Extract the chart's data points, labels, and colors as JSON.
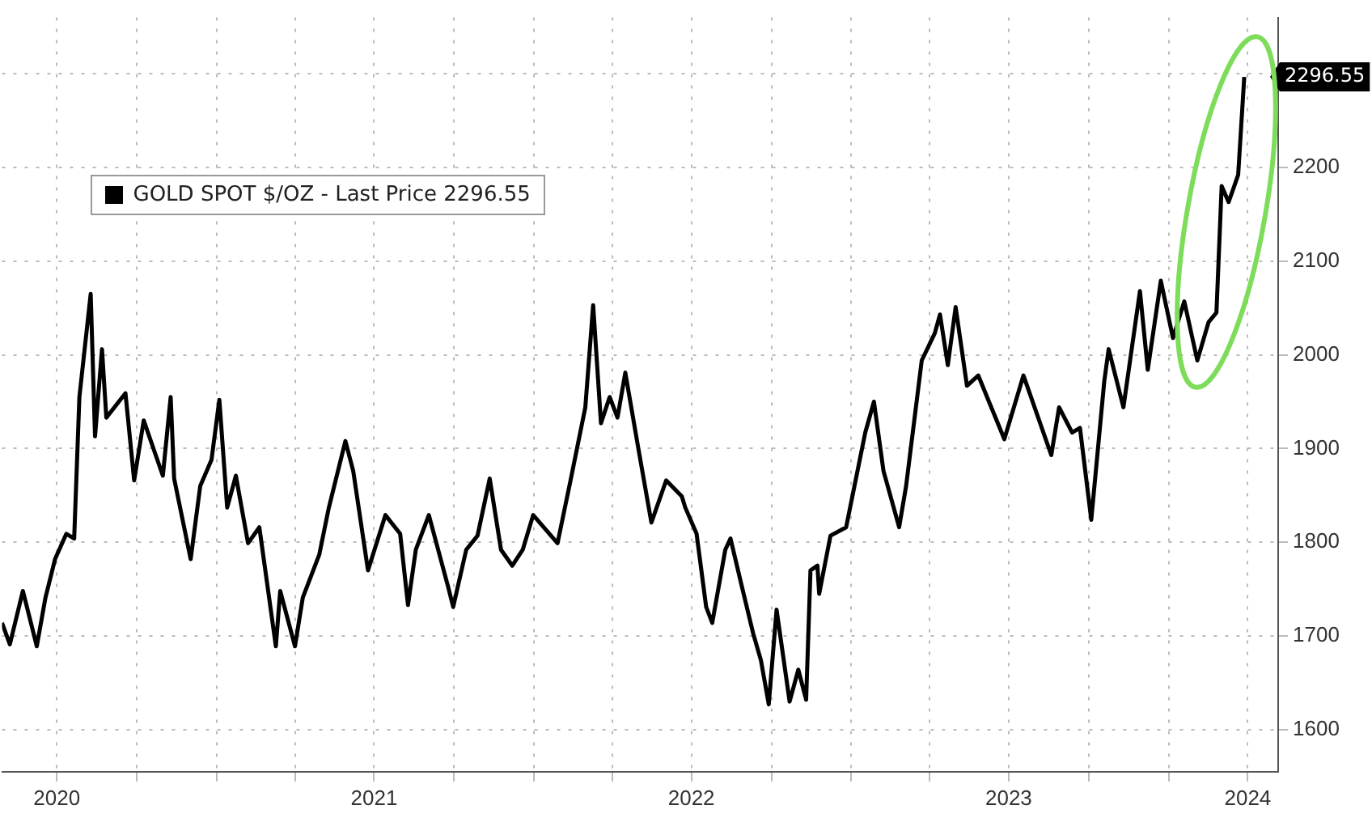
{
  "chart_data": {
    "type": "line",
    "x": [
      "2020-04-29",
      "2020-05-08",
      "2020-05-23",
      "2020-06-08",
      "2020-06-18",
      "2020-06-29",
      "2020-07-12",
      "2020-07-21",
      "2020-07-27",
      "2020-08-09",
      "2020-08-14",
      "2020-08-22",
      "2020-08-27",
      "2020-09-18",
      "2020-09-28",
      "2020-10-09",
      "2020-10-31",
      "2020-11-09",
      "2020-11-13",
      "2020-12-02",
      "2020-12-13",
      "2020-12-26",
      "2021-01-04",
      "2021-01-13",
      "2021-01-23",
      "2021-02-06",
      "2021-02-19",
      "2021-03-10",
      "2021-03-15",
      "2021-04-01",
      "2021-04-10",
      "2021-04-29",
      "2021-05-10",
      "2021-05-29",
      "2021-06-07",
      "2021-06-24",
      "2021-07-14",
      "2021-07-31",
      "2021-08-09",
      "2021-08-18",
      "2021-09-02",
      "2021-09-24",
      "2021-09-30",
      "2021-10-15",
      "2021-10-28",
      "2021-11-11",
      "2021-11-24",
      "2021-12-07",
      "2021-12-19",
      "2021-12-31",
      "2022-01-28",
      "2022-02-12",
      "2022-03-01",
      "2022-03-10",
      "2022-03-19",
      "2022-03-29",
      "2022-04-07",
      "2022-04-16",
      "2022-05-01",
      "2022-05-16",
      "2022-06-02",
      "2022-06-20",
      "2022-06-24",
      "2022-07-07",
      "2022-07-18",
      "2022-07-25",
      "2022-08-09",
      "2022-08-15",
      "2022-08-28",
      "2022-09-10",
      "2022-09-19",
      "2022-09-28",
      "2022-10-07",
      "2022-10-22",
      "2022-11-01",
      "2022-11-10",
      "2022-11-15",
      "2022-11-23",
      "2022-11-25",
      "2022-12-08",
      "2022-12-26",
      "2023-01-17",
      "2023-01-27",
      "2023-02-07",
      "2023-02-25",
      "2023-03-05",
      "2023-03-23",
      "2023-04-07",
      "2023-04-13",
      "2023-04-22",
      "2023-05-01",
      "2023-05-14",
      "2023-05-27",
      "2023-06-11",
      "2023-06-26",
      "2023-07-18",
      "2023-08-19",
      "2023-08-28",
      "2023-09-12",
      "2023-09-21",
      "2023-10-04",
      "2023-10-19",
      "2023-10-24",
      "2023-11-10",
      "2023-11-29",
      "2023-12-08",
      "2023-12-23",
      "2024-01-06",
      "2024-01-19",
      "2024-02-03",
      "2024-02-16",
      "2024-02-25",
      "2024-03-02",
      "2024-03-10",
      "2024-03-21",
      "2024-03-28"
    ],
    "series": [
      {
        "name": "GOLD SPOT $/OZ - Last Price 2296.55",
        "color": "#000000",
        "values": [
          1714,
          1691,
          1748,
          1689,
          1741,
          1782,
          1809,
          1804,
          1955,
          2065,
          1913,
          2006,
          1933,
          1959,
          1866,
          1930,
          1871,
          1955,
          1868,
          1782,
          1860,
          1888,
          1952,
          1837,
          1871,
          1799,
          1816,
          1689,
          1748,
          1689,
          1741,
          1787,
          1837,
          1908,
          1876,
          1770,
          1829,
          1809,
          1733,
          1792,
          1829,
          1753,
          1731,
          1792,
          1807,
          1868,
          1792,
          1775,
          1792,
          1829,
          1799,
          1866,
          1944,
          2053,
          1927,
          1955,
          1933,
          1981,
          1900,
          1821,
          1866,
          1849,
          1837,
          1809,
          1731,
          1714,
          1792,
          1804,
          1753,
          1703,
          1674,
          1627,
          1728,
          1630,
          1664,
          1632,
          1770,
          1775,
          1745,
          1807,
          1816,
          1917,
          1950,
          1876,
          1816,
          1860,
          1994,
          2023,
          2043,
          1989,
          2051,
          1967,
          1978,
          1944,
          1910,
          1978,
          1893,
          1944,
          1917,
          1922,
          1824,
          1972,
          2006,
          1944,
          2068,
          1984,
          2079,
          2018,
          2057,
          1994,
          2035,
          2045,
          2180,
          2163,
          2192,
          2296.55
        ]
      }
    ],
    "xlim": [
      "2020-04-29",
      "2024-05-06"
    ],
    "xticks": [
      {
        "value": "2020-07-01",
        "label": "2020"
      },
      {
        "value": "2020-10-01",
        "label": null
      },
      {
        "value": "2021-01-01",
        "label": null
      },
      {
        "value": "2021-04-01",
        "label": null
      },
      {
        "value": "2021-07-01",
        "label": "2021"
      },
      {
        "value": "2021-10-01",
        "label": null
      },
      {
        "value": "2022-01-01",
        "label": null
      },
      {
        "value": "2022-04-01",
        "label": null
      },
      {
        "value": "2022-07-01",
        "label": "2022"
      },
      {
        "value": "2022-10-01",
        "label": null
      },
      {
        "value": "2023-01-01",
        "label": null
      },
      {
        "value": "2023-04-01",
        "label": null
      },
      {
        "value": "2023-07-01",
        "label": "2023"
      },
      {
        "value": "2023-10-01",
        "label": null
      },
      {
        "value": "2024-01-01",
        "label": null
      },
      {
        "value": "2024-04-01",
        "label": "2024"
      }
    ],
    "ylim": [
      1555,
      2360
    ],
    "yticks": [
      1600,
      1700,
      1800,
      1900,
      2000,
      2100,
      2200,
      {
        "value": 2300,
        "label": null
      }
    ],
    "annotations": [
      {
        "text": "2296.55",
        "x": "2024-03-28",
        "y": 2296.55
      }
    ],
    "grid": true,
    "legend": "top left",
    "marker": "none",
    "line_style": "solid"
  }
}
